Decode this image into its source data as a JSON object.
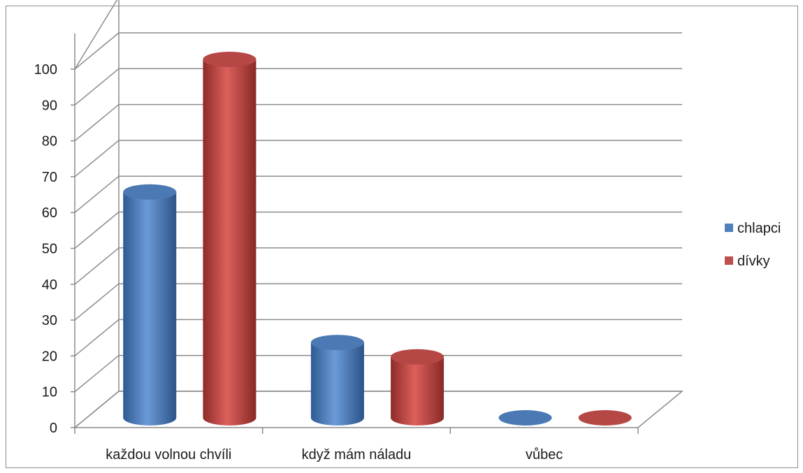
{
  "chart_data": {
    "type": "bar",
    "title": "",
    "xlabel": "",
    "ylabel": "",
    "categories": [
      "každou volnou chvíli",
      "když mám náladu",
      "vůbec"
    ],
    "series": [
      {
        "name": "chlapci",
        "values": [
          63,
          21,
          0
        ],
        "color": "#4f81bd"
      },
      {
        "name": "dívky",
        "values": [
          100,
          17,
          0
        ],
        "color": "#c0504d"
      }
    ],
    "ylim": [
      0,
      100
    ],
    "yticks": [
      "0",
      "10",
      "20",
      "30",
      "40",
      "50",
      "60",
      "70",
      "80",
      "90",
      "100"
    ],
    "grid": true,
    "legend_position": "right",
    "style": "3d-cylinder"
  }
}
